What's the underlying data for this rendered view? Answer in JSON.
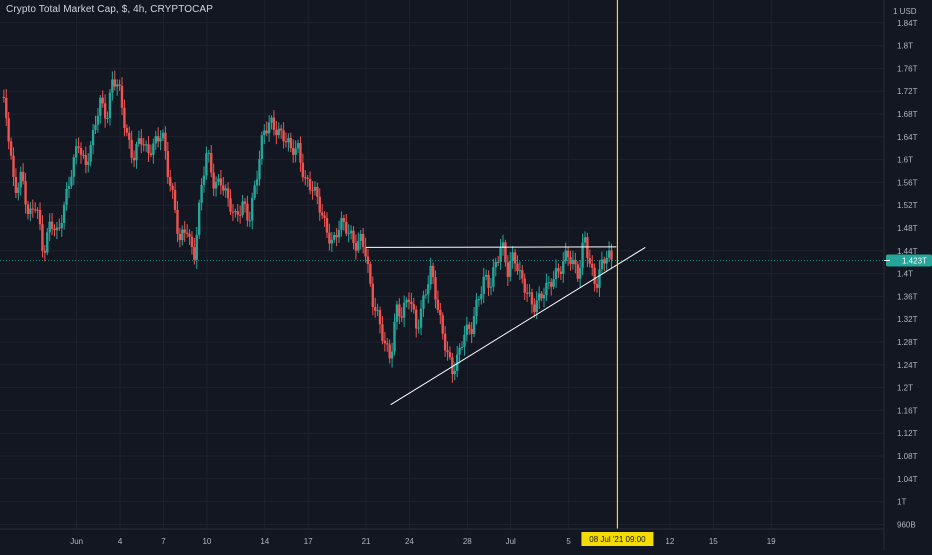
{
  "header": {
    "symbol_title": "Crypto Total Market Cap, $, 4h, CRYPTOCAP"
  },
  "chart_data": {
    "type": "candlestick",
    "currency_label": "1 USD",
    "y_ticks": [
      "1.84T",
      "1.8T",
      "1.76T",
      "1.72T",
      "1.68T",
      "1.64T",
      "1.6T",
      "1.56T",
      "1.52T",
      "1.48T",
      "1.44T",
      "1.4T",
      "1.36T",
      "1.32T",
      "1.28T",
      "1.24T",
      "1.2T",
      "1.16T",
      "1.12T",
      "1.08T",
      "1.04T",
      "1T",
      "960B"
    ],
    "y_tick_values": [
      1.84,
      1.8,
      1.76,
      1.72,
      1.68,
      1.64,
      1.6,
      1.56,
      1.52,
      1.48,
      1.44,
      1.4,
      1.36,
      1.32,
      1.28,
      1.24,
      1.2,
      1.16,
      1.12,
      1.08,
      1.04,
      1.0,
      0.96
    ],
    "ylim": [
      0.952,
      1.88
    ],
    "x_ticks": [
      "Jun",
      "4",
      "7",
      "10",
      "14",
      "17",
      "21",
      "24",
      "28",
      "Jul",
      "5",
      "12",
      "15",
      "19"
    ],
    "x_tick_days": [
      1,
      4,
      7,
      10,
      14,
      17,
      21,
      24,
      28,
      31,
      35,
      42,
      45,
      49
    ],
    "xlim_days": [
      -4.3,
      56.8
    ],
    "current_price": 1.423,
    "current_price_label": "1.423T",
    "crosshair_date_label": "08 Jul '21   09:00",
    "crosshair_day": 38.375,
    "colors": {
      "up": "#26a69a",
      "down": "#ef5350",
      "background": "#131722",
      "grid": "#1e222d",
      "axis_text": "#b2b5be",
      "crosshair": "#f4dc00",
      "trendline": "#ffffff",
      "price_line": "#26a69a"
    },
    "trendlines": [
      {
        "name": "horizontal-resistance",
        "points": [
          [
            21.0,
            1.446
          ],
          [
            38.3,
            1.447
          ]
        ]
      },
      {
        "name": "ascending-support",
        "points": [
          [
            22.7,
            1.17
          ],
          [
            40.3,
            1.446
          ]
        ]
      }
    ],
    "price_path": [
      [
        -4.2,
        1.71
      ],
      [
        -3.8,
        1.66
      ],
      [
        -3.3,
        1.55
      ],
      [
        -2.8,
        1.58
      ],
      [
        -2.3,
        1.49
      ],
      [
        -1.8,
        1.52
      ],
      [
        -1.3,
        1.44
      ],
      [
        -0.8,
        1.5
      ],
      [
        -0.3,
        1.46
      ],
      [
        0.2,
        1.52
      ],
      [
        0.6,
        1.58
      ],
      [
        1.1,
        1.64
      ],
      [
        1.6,
        1.58
      ],
      [
        2.1,
        1.63
      ],
      [
        2.6,
        1.71
      ],
      [
        3.1,
        1.68
      ],
      [
        3.5,
        1.74
      ],
      [
        3.9,
        1.72
      ],
      [
        4.4,
        1.65
      ],
      [
        4.9,
        1.61
      ],
      [
        5.4,
        1.64
      ],
      [
        5.9,
        1.6
      ],
      [
        6.4,
        1.63
      ],
      [
        6.9,
        1.66
      ],
      [
        7.3,
        1.58
      ],
      [
        7.7,
        1.52
      ],
      [
        8.1,
        1.45
      ],
      [
        8.6,
        1.49
      ],
      [
        9.1,
        1.43
      ],
      [
        9.6,
        1.54
      ],
      [
        10.0,
        1.61
      ],
      [
        10.5,
        1.56
      ],
      [
        11.0,
        1.57
      ],
      [
        11.5,
        1.52
      ],
      [
        12.0,
        1.49
      ],
      [
        12.5,
        1.53
      ],
      [
        12.9,
        1.5
      ],
      [
        13.4,
        1.56
      ],
      [
        13.9,
        1.64
      ],
      [
        14.4,
        1.67
      ],
      [
        14.8,
        1.66
      ],
      [
        15.3,
        1.64
      ],
      [
        15.8,
        1.61
      ],
      [
        16.3,
        1.62
      ],
      [
        16.8,
        1.57
      ],
      [
        17.3,
        1.55
      ],
      [
        17.8,
        1.51
      ],
      [
        18.2,
        1.48
      ],
      [
        18.7,
        1.46
      ],
      [
        19.2,
        1.49
      ],
      [
        19.7,
        1.47
      ],
      [
        20.2,
        1.45
      ],
      [
        20.7,
        1.47
      ],
      [
        21.0,
        1.44
      ],
      [
        21.4,
        1.35
      ],
      [
        21.9,
        1.31
      ],
      [
        22.3,
        1.28
      ],
      [
        22.7,
        1.26
      ],
      [
        23.1,
        1.34
      ],
      [
        23.5,
        1.32
      ],
      [
        24.0,
        1.36
      ],
      [
        24.5,
        1.31
      ],
      [
        25.0,
        1.36
      ],
      [
        25.5,
        1.4
      ],
      [
        26.0,
        1.33
      ],
      [
        26.5,
        1.28
      ],
      [
        27.0,
        1.23
      ],
      [
        27.4,
        1.25
      ],
      [
        27.8,
        1.29
      ],
      [
        28.3,
        1.31
      ],
      [
        28.7,
        1.36
      ],
      [
        29.2,
        1.39
      ],
      [
        29.6,
        1.37
      ],
      [
        30.0,
        1.42
      ],
      [
        30.4,
        1.46
      ],
      [
        30.8,
        1.41
      ],
      [
        31.2,
        1.43
      ],
      [
        31.6,
        1.39
      ],
      [
        32.1,
        1.37
      ],
      [
        32.6,
        1.35
      ],
      [
        33.1,
        1.36
      ],
      [
        33.6,
        1.37
      ],
      [
        34.1,
        1.4
      ],
      [
        34.5,
        1.42
      ],
      [
        34.9,
        1.44
      ],
      [
        35.3,
        1.41
      ],
      [
        35.7,
        1.39
      ],
      [
        36.1,
        1.47
      ],
      [
        36.5,
        1.42
      ],
      [
        36.9,
        1.38
      ],
      [
        37.3,
        1.41
      ],
      [
        37.7,
        1.43
      ],
      [
        38.0,
        1.42
      ]
    ]
  }
}
